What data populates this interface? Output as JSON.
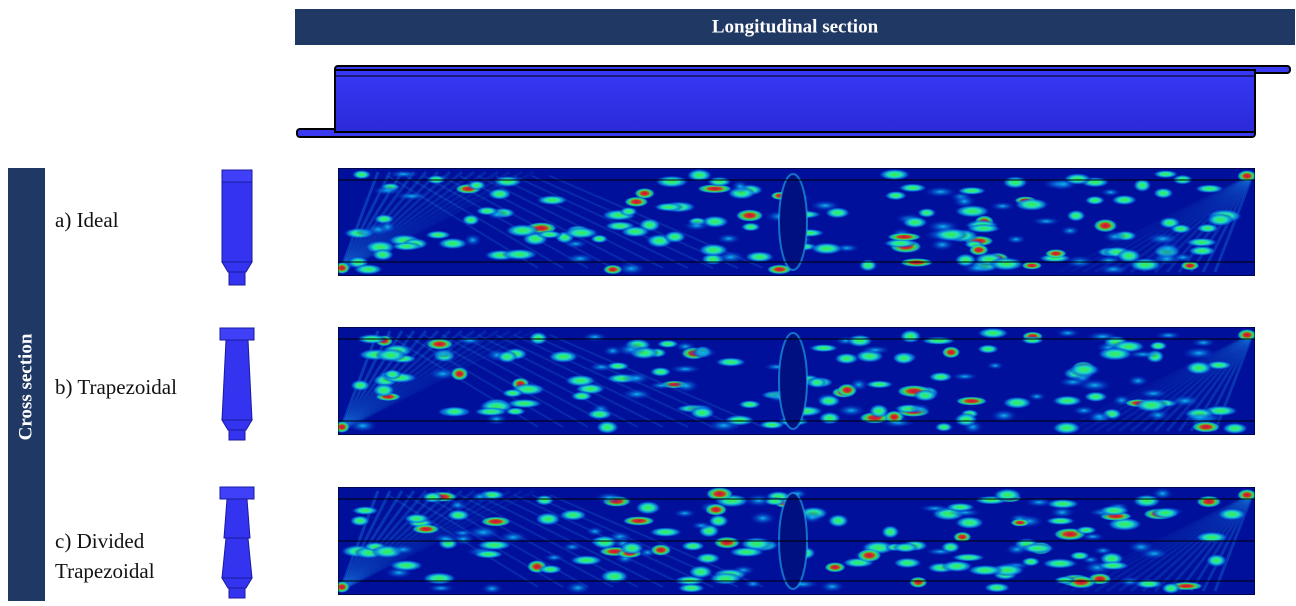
{
  "header": {
    "title": "Longitudinal section"
  },
  "side_label": "Cross section",
  "rows": [
    {
      "label_lines": [
        "a) Ideal"
      ]
    },
    {
      "label_lines": [
        "b) Trapezoidal"
      ]
    },
    {
      "label_lines": [
        "c) Divided",
        "Trapezoidal"
      ]
    }
  ]
}
